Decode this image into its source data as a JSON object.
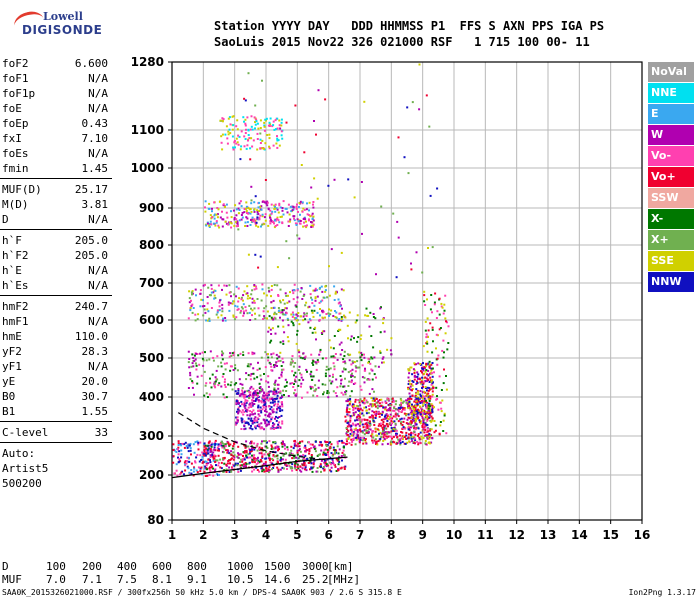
{
  "logo": {
    "line1": "Lowell",
    "line2": "DIGISONDE"
  },
  "header": {
    "line1": "Station YYYY DAY   DDD HHMMSS P1  FFS S AXN PPS IGA PS",
    "line2": "SaoLuis 2015 Nov22 326 021000 RSF   1 715 100 00- 11"
  },
  "params": {
    "group1": [
      {
        "k": "foF2",
        "v": "6.600"
      },
      {
        "k": "foF1",
        "v": "N/A"
      },
      {
        "k": "foF1p",
        "v": "N/A"
      },
      {
        "k": "foE",
        "v": "N/A"
      },
      {
        "k": "foEp",
        "v": "0.43"
      },
      {
        "k": "fxI",
        "v": "7.10"
      },
      {
        "k": "foEs",
        "v": "N/A"
      },
      {
        "k": "fmin",
        "v": "1.45"
      }
    ],
    "group2": [
      {
        "k": "MUF(D)",
        "v": "25.17"
      },
      {
        "k": "M(D)",
        "v": "3.81"
      },
      {
        "k": "D",
        "v": "N/A"
      }
    ],
    "group3": [
      {
        "k": "h`F",
        "v": "205.0"
      },
      {
        "k": "h`F2",
        "v": "205.0"
      },
      {
        "k": "h`E",
        "v": "N/A"
      },
      {
        "k": "h`Es",
        "v": "N/A"
      }
    ],
    "group4": [
      {
        "k": "hmF2",
        "v": "240.7"
      },
      {
        "k": "hmF1",
        "v": "N/A"
      },
      {
        "k": "hmE",
        "v": "110.0"
      },
      {
        "k": "yF2",
        "v": "28.3"
      },
      {
        "k": "yF1",
        "v": "N/A"
      },
      {
        "k": "yE",
        "v": "20.0"
      },
      {
        "k": "B0",
        "v": "30.7"
      },
      {
        "k": "B1",
        "v": "1.55"
      }
    ],
    "clevel": {
      "k": "C-level",
      "v": "33"
    },
    "auto": [
      "Auto:",
      "Artist5",
      "500200"
    ]
  },
  "legend": [
    {
      "label": "NoVal",
      "color": "#a0a0a0"
    },
    {
      "label": "NNE",
      "color": "#00e0f0"
    },
    {
      "label": "E",
      "color": "#3aa8f0"
    },
    {
      "label": "W",
      "color": "#b000b0"
    },
    {
      "label": "Vo-",
      "color": "#ff40b0"
    },
    {
      "label": "Vo+",
      "color": "#f00030"
    },
    {
      "label": "SSW",
      "color": "#f0a8a0"
    },
    {
      "label": "X-",
      "color": "#007800"
    },
    {
      "label": "X+",
      "color": "#70b050"
    },
    {
      "label": "SSE",
      "color": "#d0d000"
    },
    {
      "label": "NNW",
      "color": "#1010c0"
    }
  ],
  "muf_table": {
    "D_label": "D",
    "D_values": [
      "100",
      "200",
      "400",
      "600",
      "800",
      "1000",
      "1500",
      "3000"
    ],
    "D_unit": "[km]",
    "MUF_label": "MUF",
    "MUF_values": [
      "7.0",
      "7.1",
      "7.5",
      "8.1",
      "9.1",
      "10.5",
      "14.6",
      "25.2"
    ],
    "MUF_unit": "[MHz]"
  },
  "footer": "SAA0K_2015326021000.RSF / 300fx256h 50 kHz 5.0 km / DPS-4 SAA0K 903 / 2.6 S 315.8 E",
  "version": "Ion2Png 1.3.17",
  "chart_data": {
    "type": "scatter",
    "x_ticks": [
      1,
      2,
      3,
      4,
      5,
      6,
      7,
      8,
      9,
      10,
      11,
      12,
      13,
      14,
      15,
      16
    ],
    "y_tick_labels": [
      "80",
      "200",
      "300",
      "400",
      "500",
      "600",
      "700",
      "800",
      "900",
      "1000",
      "1100",
      "1280"
    ],
    "xlim": [
      1,
      16
    ],
    "grid": true,
    "legend_position": "right",
    "trace_line": [
      [
        1.0,
        193
      ],
      [
        2.0,
        204
      ],
      [
        3.0,
        214
      ],
      [
        4.0,
        224
      ],
      [
        5.0,
        235
      ],
      [
        6.0,
        242
      ],
      [
        6.6,
        246
      ]
    ],
    "dashed_line": [
      [
        1.2,
        360
      ],
      [
        2.0,
        320
      ],
      [
        3.0,
        285
      ],
      [
        4.0,
        262
      ],
      [
        5.0,
        248
      ],
      [
        6.0,
        238
      ]
    ],
    "clusters": [
      {
        "x": [
          1.0,
          2.5
        ],
        "y": [
          200,
          290
        ],
        "n": 160,
        "colors": [
          "#f00030",
          "#ff40b0",
          "#1010c0",
          "#3aa8f0"
        ]
      },
      {
        "x": [
          2.0,
          6.5
        ],
        "y": [
          210,
          290
        ],
        "n": 650,
        "colors": [
          "#f00030",
          "#ff40b0",
          "#f00030",
          "#007800",
          "#70b050",
          "#b000b0",
          "#1010c0"
        ]
      },
      {
        "x": [
          6.5,
          9.3
        ],
        "y": [
          280,
          400
        ],
        "n": 750,
        "colors": [
          "#f00030",
          "#f00030",
          "#ff40b0",
          "#1010c0",
          "#b000b0",
          "#70b050",
          "#d0d000"
        ]
      },
      {
        "x": [
          8.5,
          9.3
        ],
        "y": [
          330,
          490
        ],
        "n": 260,
        "colors": [
          "#f00030",
          "#1010c0",
          "#b000b0",
          "#d0d000"
        ]
      },
      {
        "x": [
          3.0,
          4.5
        ],
        "y": [
          320,
          420
        ],
        "n": 320,
        "colors": [
          "#b000b0",
          "#1010c0",
          "#ff40b0"
        ]
      },
      {
        "x": [
          1.5,
          7.5
        ],
        "y": [
          400,
          520
        ],
        "n": 420,
        "colors": [
          "#b000b0",
          "#ff40b0",
          "#70b050",
          "#007800"
        ]
      },
      {
        "x": [
          1.5,
          6.5
        ],
        "y": [
          600,
          700
        ],
        "n": 320,
        "colors": [
          "#d0d000",
          "#b000b0",
          "#ff40b0",
          "#3aa8f0",
          "#70b050"
        ]
      },
      {
        "x": [
          2.0,
          5.5
        ],
        "y": [
          850,
          920
        ],
        "n": 300,
        "colors": [
          "#d0d000",
          "#b000b0",
          "#ff40b0",
          "#3aa8f0"
        ]
      },
      {
        "x": [
          2.5,
          4.5
        ],
        "y": [
          1050,
          1140
        ],
        "n": 140,
        "colors": [
          "#d0d000",
          "#00e0f0",
          "#ff40b0"
        ]
      },
      {
        "x": [
          4.0,
          8.0
        ],
        "y": [
          480,
          640
        ],
        "n": 140,
        "colors": [
          "#b000b0",
          "#d0d000",
          "#007800"
        ]
      },
      {
        "x": [
          9.0,
          9.8
        ],
        "y": [
          300,
          680
        ],
        "n": 120,
        "colors": [
          "#d0d000",
          "#f00030",
          "#ff40b0",
          "#007800"
        ]
      },
      {
        "x": [
          3.0,
          9.5
        ],
        "y": [
          700,
          1280
        ],
        "n": 70,
        "colors": [
          "#d0d000",
          "#b000b0",
          "#f00030",
          "#1010c0",
          "#70b050"
        ]
      }
    ]
  }
}
